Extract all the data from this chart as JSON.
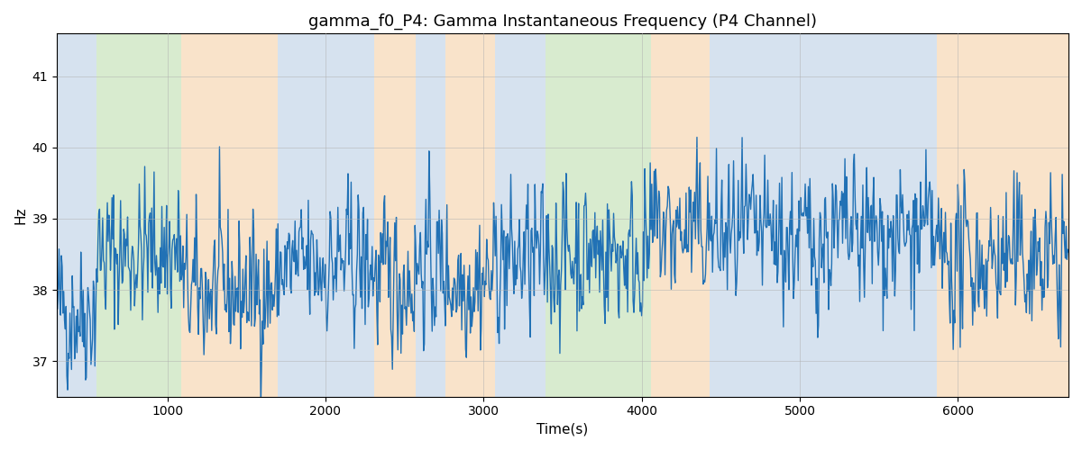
{
  "title": "gamma_f0_P4: Gamma Instantaneous Frequency (P4 Channel)",
  "xlabel": "Time(s)",
  "ylabel": "Hz",
  "xlim": [
    300,
    6700
  ],
  "ylim": [
    36.5,
    41.6
  ],
  "yticks": [
    37,
    38,
    39,
    40,
    41
  ],
  "xticks": [
    1000,
    2000,
    3000,
    4000,
    5000,
    6000
  ],
  "line_color": "#2171b5",
  "line_width": 1.0,
  "background_color": "#ffffff",
  "grid_color": "#b0b0b0",
  "bands": [
    {
      "xmin": 300,
      "xmax": 550,
      "color": "#aec6e0",
      "alpha": 0.5
    },
    {
      "xmin": 550,
      "xmax": 1090,
      "color": "#90c878",
      "alpha": 0.35
    },
    {
      "xmin": 1090,
      "xmax": 1700,
      "color": "#f5c896",
      "alpha": 0.5
    },
    {
      "xmin": 1700,
      "xmax": 1800,
      "color": "#aec6e0",
      "alpha": 0.5
    },
    {
      "xmin": 1800,
      "xmax": 2310,
      "color": "#aec6e0",
      "alpha": 0.5
    },
    {
      "xmin": 2310,
      "xmax": 2570,
      "color": "#f5c896",
      "alpha": 0.5
    },
    {
      "xmin": 2570,
      "xmax": 2760,
      "color": "#aec6e0",
      "alpha": 0.5
    },
    {
      "xmin": 2760,
      "xmax": 3070,
      "color": "#f5c896",
      "alpha": 0.5
    },
    {
      "xmin": 3070,
      "xmax": 3390,
      "color": "#aec6e0",
      "alpha": 0.5
    },
    {
      "xmin": 3390,
      "xmax": 4060,
      "color": "#90c878",
      "alpha": 0.35
    },
    {
      "xmin": 4060,
      "xmax": 4430,
      "color": "#f5c896",
      "alpha": 0.5
    },
    {
      "xmin": 4430,
      "xmax": 5870,
      "color": "#aec6e0",
      "alpha": 0.5
    },
    {
      "xmin": 5870,
      "xmax": 6700,
      "color": "#f5c896",
      "alpha": 0.5
    }
  ],
  "seed": 42,
  "n_points": 1300,
  "t_start": 300,
  "t_end": 6700,
  "base_freq": 38.3
}
